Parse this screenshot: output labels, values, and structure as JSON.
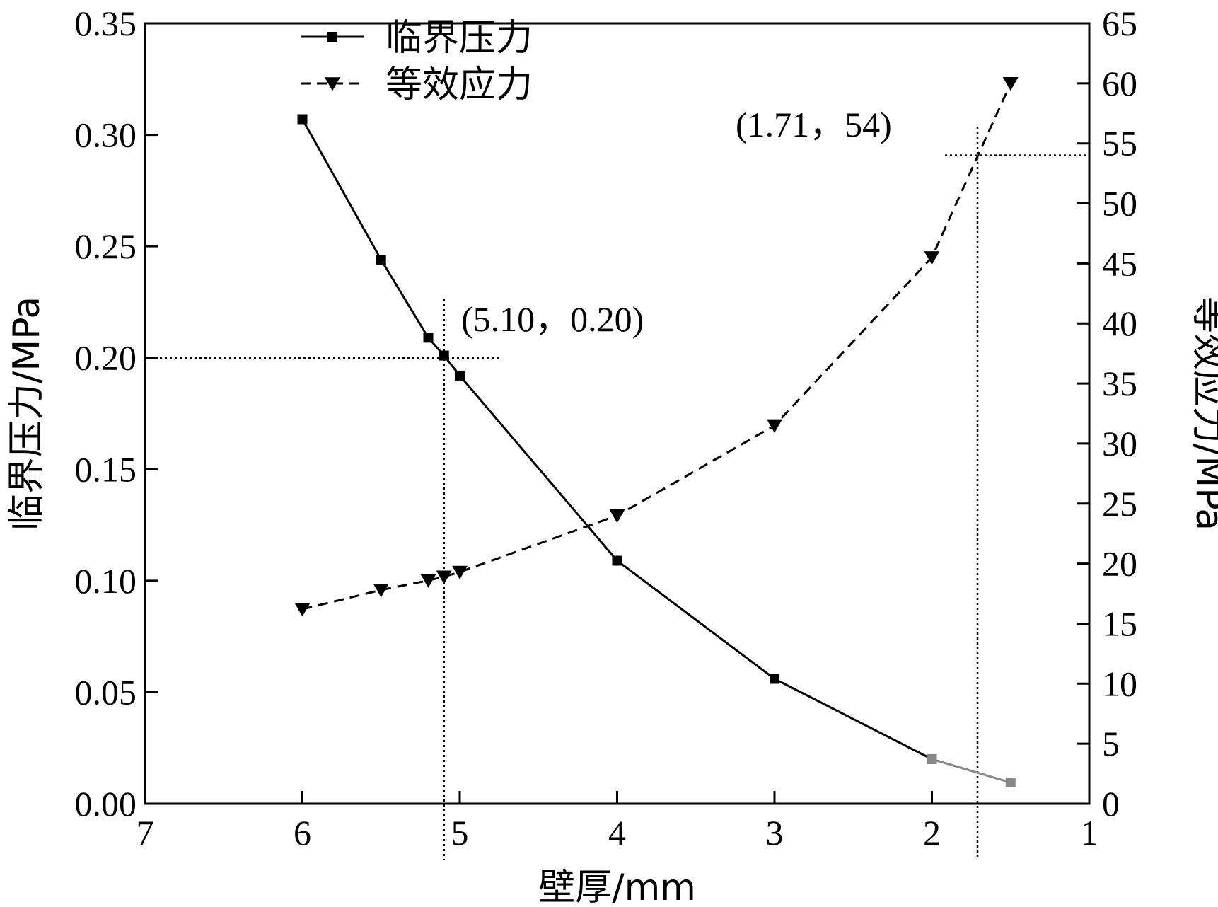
{
  "chart_data": {
    "type": "line",
    "xlabel": "壁厚/mm",
    "ylabel_left": "临界压力/MPa",
    "ylabel_right": "等效应力/MPa",
    "xlim": [
      7,
      1
    ],
    "x_reversed": true,
    "x_ticks": [
      7,
      6,
      5,
      4,
      3,
      2,
      1
    ],
    "x_tick_labels": [
      "7",
      "6",
      "5",
      "4",
      "3",
      "2",
      "1"
    ],
    "ylim_left": [
      0,
      0.35
    ],
    "y_ticks_left": [
      "0.00",
      "0.05",
      "0.10",
      "0.15",
      "0.20",
      "0.25",
      "0.30",
      "0.35"
    ],
    "ylim_right": [
      0,
      65
    ],
    "y_ticks_right": [
      "0",
      "5",
      "10",
      "15",
      "20",
      "25",
      "30",
      "35",
      "40",
      "45",
      "50",
      "55",
      "60",
      "65"
    ],
    "grid": false,
    "legend_position": "top-left",
    "series": [
      {
        "name": "临界压力",
        "axis": "left",
        "line_style": "solid",
        "marker": "square",
        "color": "#000000",
        "x": [
          6,
          5.5,
          5.2,
          5.1,
          5,
          4,
          3,
          2
        ],
        "y": [
          0.307,
          0.244,
          0.209,
          0.201,
          0.192,
          0.109,
          0.056,
          0.02
        ]
      },
      {
        "name": "",
        "axis": "left",
        "line_style": "solid",
        "marker": "square",
        "color": "#888888",
        "x": [
          2,
          1.5
        ],
        "y": [
          0.02,
          0.0095
        ]
      },
      {
        "name": "等效应力",
        "axis": "right",
        "line_style": "dashed",
        "marker": "triangle-down",
        "color": "#000000",
        "x": [
          6,
          5.5,
          5.2,
          5.1,
          5,
          4,
          3,
          2,
          1.5
        ],
        "y": [
          16.2,
          17.8,
          18.6,
          18.9,
          19.3,
          24.0,
          31.5,
          45.5,
          60.0
        ]
      }
    ],
    "annotations": [
      {
        "text": "(5.10，0.20)",
        "x": 5.1,
        "y": 0.2,
        "axis": "left"
      },
      {
        "text": "(1.71，54)",
        "x": 1.71,
        "y": 54,
        "axis": "right"
      }
    ]
  }
}
